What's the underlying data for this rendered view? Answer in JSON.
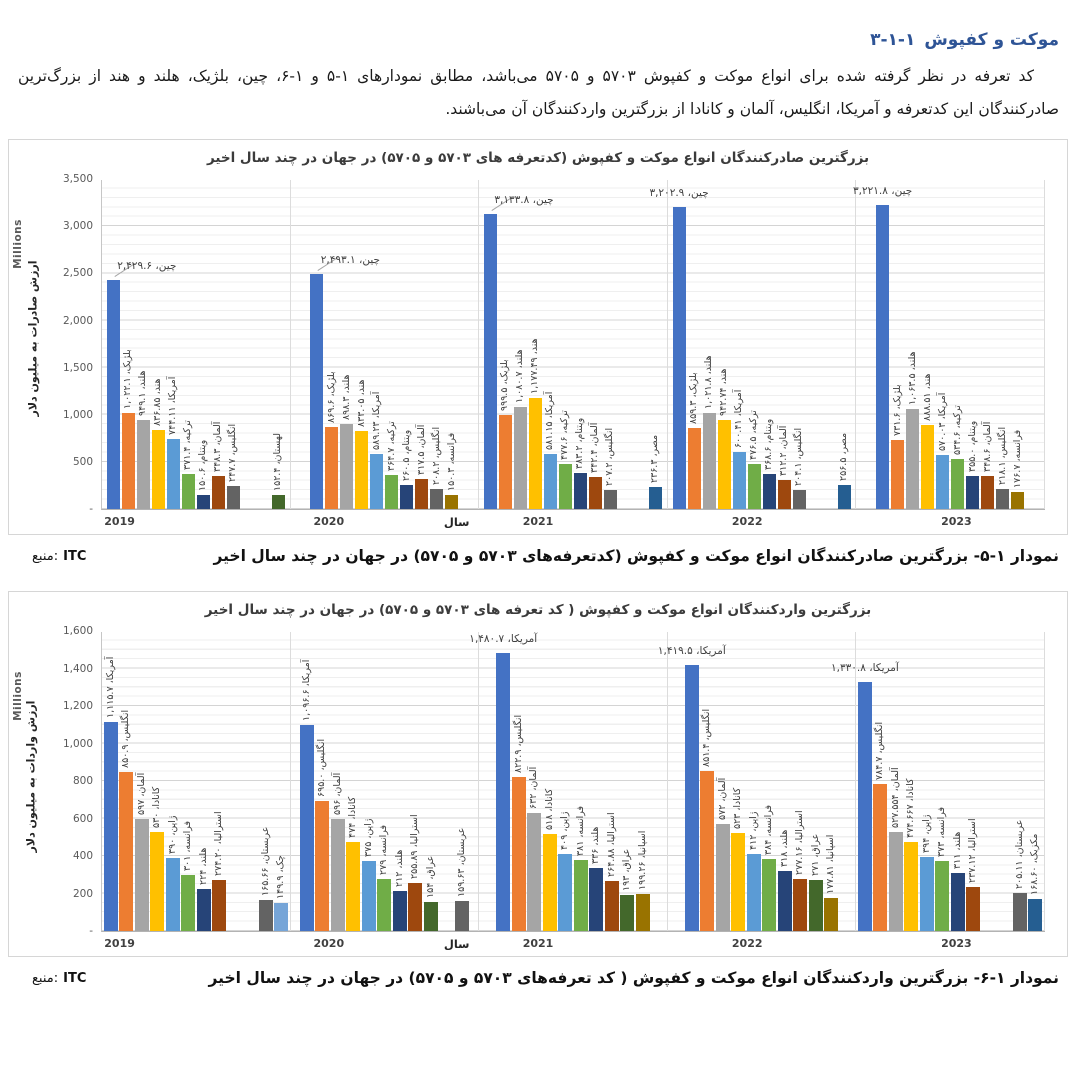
{
  "page": {
    "heading": {
      "number": "۳-۱-۱",
      "title": "موکت و کفپوش"
    },
    "paragraph": "کد تعرفه در نظر گرفته شده برای انواع موکت و کفپوش ۵۷۰۳ و ۵۷۰۵ می‌باشد، مطابق نمودارهای ۱-۵ و ۱-۶، چین، بلژیک، هلند و هند از بزرگ‌ترین صادرکنندگان این کدتعرفه و آمریکا، انگلیس، آلمان و کانادا از بزرگترین واردکنندگان آن می‌باشند.",
    "caption1": {
      "text": "نمودار ۱-۵- بزرگترین صادرکنندگان انواع موکت و کفپوش (کدتعرفه‌های ۵۷۰۳ و ۵۷۰۵) در جهان در چند سال اخیر",
      "source_label": "منبع:",
      "source_value": "ITC"
    },
    "caption2": {
      "text": "نمودار ۱-۶- بزرگترین واردکنندگان انواع موکت و کفپوش ( کد تعرفه‌های ۵۷۰۳ و ۵۷۰۵) در جهان در چند سال اخیر",
      "source_label": "منبع:",
      "source_value": "ITC"
    }
  },
  "chart_data": [
    {
      "type": "bar",
      "title": "بزرگترین صادرکنندگان انواع موکت و کفپوش (کدتعرفه های ۵۷۰۳ و ۵۷۰۵) در جهان در چند سال اخیر",
      "ylabel": "ارزش صادرات به میلیون دلار",
      "units_label": "Millions",
      "xlabel": "سال",
      "ylim": [
        0,
        3500
      ],
      "ytick_labels": [
        "3,500",
        "3,000",
        "2,500",
        "2,000",
        "1,500",
        "1,000",
        "500",
        "-"
      ],
      "grid": "minor+major",
      "legend": "none",
      "years": [
        {
          "year": "2019",
          "bars": [
            {
              "n": "چین",
              "v": 2429.6,
              "l": "چین، ۲,۴۲۹.۶",
              "c": "#4472C4",
              "h": true,
              "leader": true
            },
            {
              "n": "بلژیک",
              "v": 1022.1,
              "l": "بلژیک، ۱,۰۲۲.۱",
              "c": "#ED7D31"
            },
            {
              "n": "هلند",
              "v": 949.1,
              "l": "هلند، ۹۴۹.۱",
              "c": "#A5A5A5"
            },
            {
              "n": "هند",
              "v": 836.85,
              "l": "هند، ۸۳۶.۸۵",
              "c": "#FFC000"
            },
            {
              "n": "آمریکا",
              "v": 744.11,
              "l": "آمریکا، ۷۴۴.۱۱",
              "c": "#5B9BD5"
            },
            {
              "n": "ترکیه",
              "v": 371.4,
              "l": "ترکیه، ۳۷۱.۴",
              "c": "#70AD47"
            },
            {
              "n": "ویتنام",
              "v": 150.6,
              "l": "ویتنام، ۱۵۰.۶",
              "c": "#264478"
            },
            {
              "n": "آلمان",
              "v": 348.3,
              "l": "آلمان، ۳۴۸.۳",
              "c": "#9E480E"
            },
            {
              "n": "انگلیس",
              "v": 247.7,
              "l": "انگلیس، ۲۴۷.۷",
              "c": "#636363"
            },
            {
              "n": "لهستان",
              "v": 152.4,
              "l": "لهستان، ۱۵۲.۴",
              "c": "#43682B",
              "g": 2
            }
          ]
        },
        {
          "year": "2020",
          "bars": [
            {
              "n": "چین",
              "v": 2493.1,
              "l": "چین، ۲,۴۹۳.۱",
              "c": "#4472C4",
              "h": true,
              "leader": true
            },
            {
              "n": "بلژیک",
              "v": 869.6,
              "l": "بلژیک، ۸۶۹.۶",
              "c": "#ED7D31"
            },
            {
              "n": "هلند",
              "v": 898.3,
              "l": "هلند، ۸۹۸.۳",
              "c": "#A5A5A5"
            },
            {
              "n": "هند",
              "v": 833.05,
              "l": "هند، ۸۳۳.۰۵",
              "c": "#FFC000"
            },
            {
              "n": "آمریکا",
              "v": 589.23,
              "l": "آمریکا، ۵۸۹.۲۳",
              "c": "#5B9BD5"
            },
            {
              "n": "ترکیه",
              "v": 364.7,
              "l": "ترکیه، ۳۶۴.۷",
              "c": "#70AD47"
            },
            {
              "n": "ویتنام",
              "v": 260.5,
              "l": "ویتنام، ۲۶۰.۵",
              "c": "#264478"
            },
            {
              "n": "آلمان",
              "v": 317.5,
              "l": "آلمان، ۳۱۷.۵",
              "c": "#9E480E"
            },
            {
              "n": "انگلیس",
              "v": 208.2,
              "l": "انگلیس، ۲۰۸.۲",
              "c": "#636363"
            },
            {
              "n": "فرانسه",
              "v": 150.3,
              "l": "فرانسه، ۱۵۰.۳",
              "c": "#997300"
            }
          ]
        },
        {
          "year": "2021",
          "bars": [
            {
              "n": "چین",
              "v": 3133.8,
              "l": "چین، ۳,۱۳۳.۸",
              "c": "#4472C4",
              "h": true,
              "leader": true
            },
            {
              "n": "بلژیک",
              "v": 999.5,
              "l": "بلژیک، ۹۹۹.۵",
              "c": "#ED7D31"
            },
            {
              "n": "هلند",
              "v": 1080.7,
              "l": "هلند، ۱,۰۸۰.۷",
              "c": "#A5A5A5"
            },
            {
              "n": "هند",
              "v": 1177.49,
              "l": "هند، ۱,۱۷۷.۴۹",
              "c": "#FFC000"
            },
            {
              "n": "آمریکا",
              "v": 581.15,
              "l": "آمریکا، ۵۸۱.۱۵",
              "c": "#5B9BD5"
            },
            {
              "n": "ترکیه",
              "v": 477.6,
              "l": "ترکیه، ۴۷۷.۶",
              "c": "#70AD47"
            },
            {
              "n": "ویتنام",
              "v": 383.2,
              "l": "ویتنام، ۳۸۳.۲",
              "c": "#264478"
            },
            {
              "n": "آلمان",
              "v": 342.4,
              "l": "آلمان، ۳۴۲.۴",
              "c": "#9E480E"
            },
            {
              "n": "انگلیس",
              "v": 207.2,
              "l": "انگلیس، ۲۰۷.۲",
              "c": "#636363"
            },
            {
              "n": "مصر",
              "v": 236.3,
              "l": "مصر، ۲۳۶.۳",
              "c": "#255E91",
              "g": 2
            }
          ]
        },
        {
          "year": "2022",
          "bars": [
            {
              "n": "چین",
              "v": 3202.9,
              "l": "چین، ۳,۲۰۲.۹",
              "c": "#4472C4",
              "h": true
            },
            {
              "n": "بلژیک",
              "v": 859.3,
              "l": "بلژیک، ۸۵۹.۳",
              "c": "#ED7D31"
            },
            {
              "n": "هلند",
              "v": 1021.8,
              "l": "هلند، ۱,۰۲۱.۸",
              "c": "#A5A5A5"
            },
            {
              "n": "هند",
              "v": 942.74,
              "l": "هند، ۹۴۲.۷۴",
              "c": "#FFC000"
            },
            {
              "n": "آمریکا",
              "v": 600.41,
              "l": "آمریکا، ۶۰۰.۴۱",
              "c": "#5B9BD5"
            },
            {
              "n": "ترکیه",
              "v": 476.5,
              "l": "ترکیه، ۴۷۶.۵",
              "c": "#70AD47"
            },
            {
              "n": "ویتنام",
              "v": 368.6,
              "l": "ویتنام، ۳۶۸.۶",
              "c": "#264478"
            },
            {
              "n": "آلمان",
              "v": 312.2,
              "l": "آلمان، ۳۱۲.۲",
              "c": "#9E480E"
            },
            {
              "n": "انگلیس",
              "v": 204.1,
              "l": "انگلیس، ۲۰۴.۱",
              "c": "#636363"
            },
            {
              "n": "مصر",
              "v": 256.5,
              "l": "مصر، ۲۵۶.۵",
              "c": "#255E91",
              "g": 2
            }
          ]
        },
        {
          "year": "2023",
          "bars": [
            {
              "n": "چین",
              "v": 3221.8,
              "l": "چین، ۳,۲۲۱.۸",
              "c": "#4472C4",
              "h": true
            },
            {
              "n": "بلژیک",
              "v": 731.6,
              "l": "بلژیک، ۷۳۱.۶",
              "c": "#ED7D31"
            },
            {
              "n": "هلند",
              "v": 1063.5,
              "l": "هلند، ۱,۰۶۳.۵",
              "c": "#A5A5A5"
            },
            {
              "n": "هند",
              "v": 888.51,
              "l": "هند، ۸۸۸.۵۱",
              "c": "#FFC000"
            },
            {
              "n": "آمریکا",
              "v": 570.03,
              "l": "آمریکا، ۵۷۰.۰۳",
              "c": "#5B9BD5"
            },
            {
              "n": "ترکیه",
              "v": 534.6,
              "l": "ترکیه، ۵۳۴.۶",
              "c": "#70AD47"
            },
            {
              "n": "ویتنام",
              "v": 355.0,
              "l": "ویتنام، ۳۵۵.۰",
              "c": "#264478"
            },
            {
              "n": "آلمان",
              "v": 348.6,
              "l": "آلمان، ۳۴۸.۶",
              "c": "#9E480E"
            },
            {
              "n": "انگلیس",
              "v": 218.1,
              "l": "انگلیس، ۲۱۸.۱",
              "c": "#636363"
            },
            {
              "n": "فرانسه",
              "v": 176.7,
              "l": "فرانسه، ۱۷۶.۷",
              "c": "#997300"
            }
          ]
        }
      ]
    },
    {
      "type": "bar",
      "title": "بزرگترین واردکنندگان انواع موکت و  کفپوش ( کد تعرفه های ۵۷۰۳ و ۵۷۰۵) در جهان در چند سال اخیر",
      "ylabel": "ارزش واردات به میلیون دلار",
      "units_label": "Millions",
      "xlabel": "سال",
      "ylim": [
        0,
        1600
      ],
      "ytick_labels": [
        "1,600",
        "1,400",
        "1,200",
        "1,000",
        "800",
        "600",
        "400",
        "200",
        "-"
      ],
      "grid": "minor+major",
      "legend": "none",
      "years": [
        {
          "year": "2019",
          "bars": [
            {
              "n": "آمریکا",
              "v": 1115.7,
              "l": "آمریکا، ۱,۱۱۵.۷",
              "c": "#4472C4"
            },
            {
              "n": "انگلیس",
              "v": 850.9,
              "l": "انگلیس، ۸۵۰.۹",
              "c": "#ED7D31"
            },
            {
              "n": "آلمان",
              "v": 597,
              "l": "آلمان، ۵۹۷",
              "c": "#A5A5A5"
            },
            {
              "n": "کانادا",
              "v": 530,
              "l": "کانادا، ۵۳۰",
              "c": "#FFC000"
            },
            {
              "n": "ژاپن",
              "v": 390,
              "l": "ژاپن، ۳۹۰",
              "c": "#5B9BD5"
            },
            {
              "n": "فرانسه",
              "v": 301,
              "l": "فرانسه، ۳۰۱",
              "c": "#70AD47"
            },
            {
              "n": "هلند",
              "v": 224,
              "l": "هلند، ۲۲۴",
              "c": "#264478"
            },
            {
              "n": "استرالیا",
              "v": 274.2,
              "l": "استرالیا، ۲۷۴.۲۰",
              "c": "#9E480E"
            },
            {
              "n": "عربستان",
              "v": 165.66,
              "l": "عربستان، ۱۶۵.۶۶",
              "c": "#636363",
              "g": 2
            },
            {
              "n": "چک",
              "v": 149.9,
              "l": "چک، ۱۴۹.۹",
              "c": "#76A5D8"
            }
          ]
        },
        {
          "year": "2020",
          "bars": [
            {
              "n": "آمریکا",
              "v": 1096.6,
              "l": "آمریکا، ۱,۰۹۶.۶",
              "c": "#4472C4"
            },
            {
              "n": "انگلیس",
              "v": 695.0,
              "l": "انگلیس، ۶۹۵.۰",
              "c": "#ED7D31"
            },
            {
              "n": "آلمان",
              "v": 596,
              "l": "آلمان، ۵۹۶",
              "c": "#A5A5A5"
            },
            {
              "n": "کانادا",
              "v": 474,
              "l": "کانادا، ۴۷۴",
              "c": "#FFC000"
            },
            {
              "n": "ژاپن",
              "v": 375,
              "l": "ژاپن، ۳۷۵",
              "c": "#5B9BD5"
            },
            {
              "n": "فرانسه",
              "v": 279,
              "l": "فرانسه، ۲۷۹",
              "c": "#70AD47"
            },
            {
              "n": "هلند",
              "v": 212,
              "l": "هلند، ۲۱۲",
              "c": "#264478"
            },
            {
              "n": "استرالیا",
              "v": 255.89,
              "l": "استرالیا، ۲۵۵.۸۹",
              "c": "#9E480E"
            },
            {
              "n": "عراق",
              "v": 154,
              "l": "عراق، ۱۵۴",
              "c": "#43682B"
            },
            {
              "n": "عربستان",
              "v": 159.63,
              "l": "عربستان، ۱۵۹.۶۳",
              "c": "#636363",
              "g": 1
            }
          ]
        },
        {
          "year": "2021",
          "bars": [
            {
              "n": "آمریکا",
              "v": 1480.7,
              "l": "آمریکا، ۱,۴۸۰.۷",
              "c": "#4472C4",
              "h": true
            },
            {
              "n": "انگلیس",
              "v": 822.9,
              "l": "انگلیس، ۸۲۲.۹",
              "c": "#ED7D31"
            },
            {
              "n": "آلمان",
              "v": 632,
              "l": "آلمان، ۶۳۲",
              "c": "#A5A5A5"
            },
            {
              "n": "کانادا",
              "v": 518,
              "l": "کانادا، ۵۱۸",
              "c": "#FFC000"
            },
            {
              "n": "ژاپن",
              "v": 409,
              "l": "ژاپن، ۴۰۹",
              "c": "#5B9BD5"
            },
            {
              "n": "فرانسه",
              "v": 381,
              "l": "فرانسه، ۳۸۱",
              "c": "#70AD47"
            },
            {
              "n": "هلند",
              "v": 336,
              "l": "هلند، ۳۳۶",
              "c": "#264478"
            },
            {
              "n": "استرالیا",
              "v": 264.88,
              "l": "استرالیا، ۲۶۴.۸۸",
              "c": "#9E480E"
            },
            {
              "n": "عراق",
              "v": 193,
              "l": "عراق، ۱۹۳",
              "c": "#43682B"
            },
            {
              "n": "اسپانیا",
              "v": 199.26,
              "l": "اسپانیا، ۱۹۹.۲۶",
              "c": "#997300"
            }
          ]
        },
        {
          "year": "2022",
          "bars": [
            {
              "n": "آمریکا",
              "v": 1419.5,
              "l": "آمریکا، ۱,۴۱۹.۵",
              "c": "#4472C4",
              "h": true
            },
            {
              "n": "انگلیس",
              "v": 851.4,
              "l": "انگلیس، ۸۵۱.۴",
              "c": "#ED7D31"
            },
            {
              "n": "آلمان",
              "v": 572,
              "l": "آلمان، ۵۷۲",
              "c": "#A5A5A5"
            },
            {
              "n": "کانادا",
              "v": 523,
              "l": "کانادا، ۵۲۳",
              "c": "#FFC000"
            },
            {
              "n": "ژاپن",
              "v": 412,
              "l": "ژاپن، ۴۱۲",
              "c": "#5B9BD5"
            },
            {
              "n": "فرانسه",
              "v": 384,
              "l": "فرانسه، ۳۸۴",
              "c": "#70AD47"
            },
            {
              "n": "هلند",
              "v": 318,
              "l": "هلند، ۳۱۸",
              "c": "#264478"
            },
            {
              "n": "استرالیا",
              "v": 277.16,
              "l": "استرالیا، ۲۷۷.۱۶",
              "c": "#9E480E"
            },
            {
              "n": "عراق",
              "v": 271,
              "l": "عراق، ۲۷۱",
              "c": "#43682B"
            },
            {
              "n": "اسپانیا",
              "v": 177.81,
              "l": "اسپانیا، ۱۷۷.۸۱",
              "c": "#997300"
            }
          ]
        },
        {
          "year": "2023",
          "bars": [
            {
              "n": "آمریکا",
              "v": 1330.8,
              "l": "آمریکا، ۱,۳۳۰.۸",
              "c": "#4472C4",
              "h": true
            },
            {
              "n": "انگلیس",
              "v": 784.7,
              "l": "انگلیس، ۷۸۴.۷",
              "c": "#ED7D31"
            },
            {
              "n": "آلمان",
              "v": 527.554,
              "l": "آلمان، ۵۲۷.۵۵۴",
              "c": "#A5A5A5"
            },
            {
              "n": "کانادا",
              "v": 474.667,
              "l": "کانادا، ۴۷۴.۶۶۷",
              "c": "#FFC000"
            },
            {
              "n": "ژاپن",
              "v": 394,
              "l": "ژاپن، ۳۹۴",
              "c": "#5B9BD5"
            },
            {
              "n": "فرانسه",
              "v": 373,
              "l": "فرانسه، ۳۷۳",
              "c": "#70AD47"
            },
            {
              "n": "هلند",
              "v": 311,
              "l": "هلند، ۳۱۱",
              "c": "#264478"
            },
            {
              "n": "استرالیا",
              "v": 237.12,
              "l": "استرالیا، ۲۳۷.۱۲",
              "c": "#9E480E"
            },
            {
              "n": "عربستان",
              "v": 205.11,
              "l": "عربستان، ۲۰۵.۱۱",
              "c": "#636363",
              "g": 2
            },
            {
              "n": "مکزیک",
              "v": 168.6,
              "l": "مکزیک، ۱۶۸.۶۰",
              "c": "#255E91"
            }
          ]
        }
      ]
    }
  ]
}
